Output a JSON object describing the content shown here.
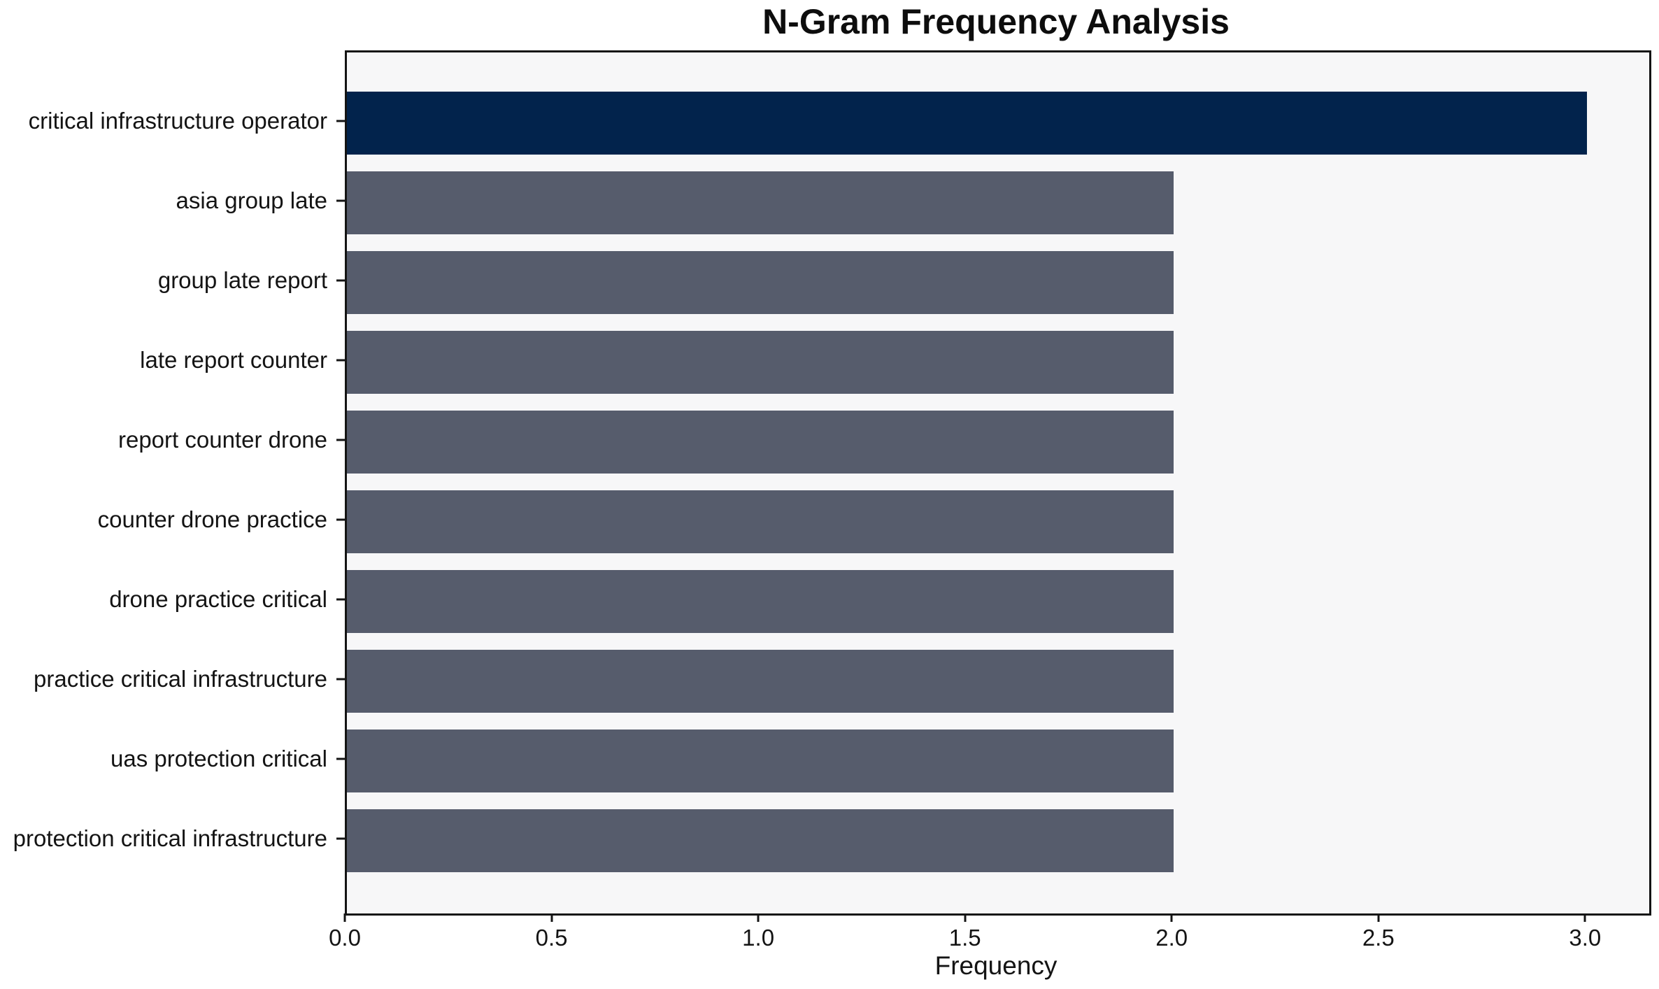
{
  "chart_data": {
    "type": "bar",
    "orientation": "horizontal",
    "title": "N-Gram Frequency Analysis",
    "xlabel": "Frequency",
    "ylabel": "",
    "categories": [
      "critical infrastructure operator",
      "asia group late",
      "group late report",
      "late report counter",
      "report counter drone",
      "counter drone practice",
      "drone practice critical",
      "practice critical infrastructure",
      "uas protection critical",
      "protection critical infrastructure"
    ],
    "values": [
      3,
      2,
      2,
      2,
      2,
      2,
      2,
      2,
      2,
      2
    ],
    "bar_colors": [
      "#02234C",
      "#565C6C",
      "#565C6C",
      "#565C6C",
      "#565C6C",
      "#565C6C",
      "#565C6C",
      "#565C6C",
      "#565C6C",
      "#565C6C"
    ],
    "x_tick_labels": [
      "0.0",
      "0.5",
      "1.0",
      "1.5",
      "2.0",
      "2.5",
      "3.0"
    ],
    "x_tick_values": [
      0,
      0.5,
      1.0,
      1.5,
      2.0,
      2.5,
      3.0
    ],
    "xlim": [
      0,
      3.15
    ],
    "grid": false,
    "legend": null,
    "plot_background": "#F7F7F8",
    "figure_background": "#FFFFFF",
    "highlight_color": "#02234C",
    "default_bar_color": "#565C6C",
    "spine_color": "#141414"
  }
}
